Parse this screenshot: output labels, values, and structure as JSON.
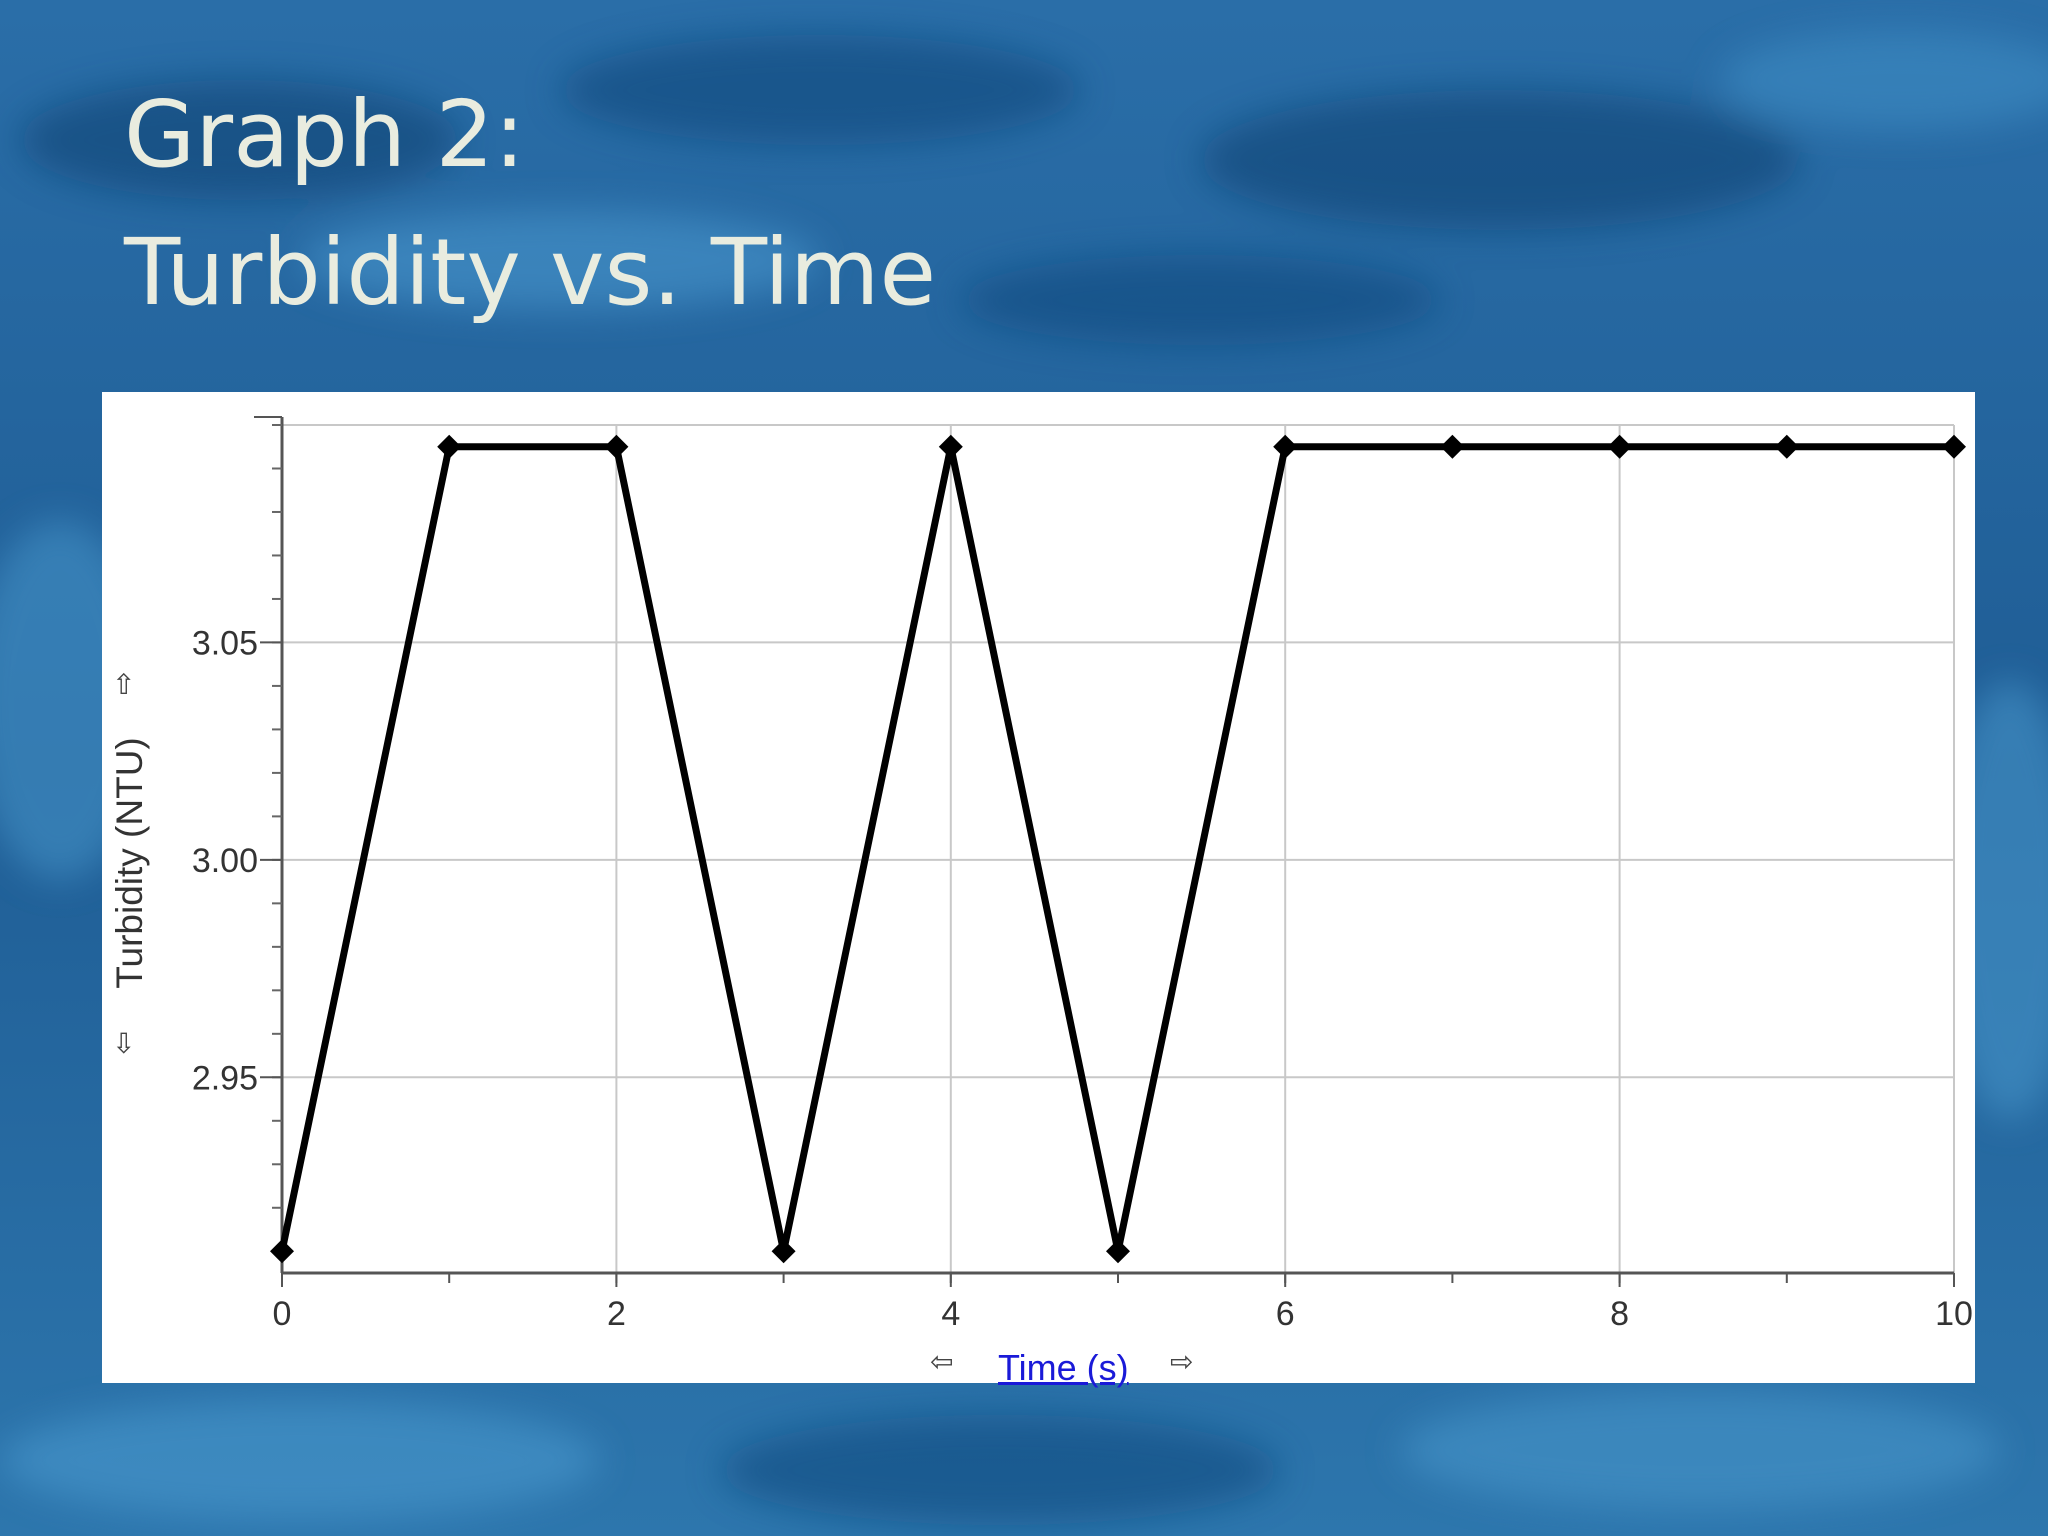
{
  "slide": {
    "title_line1": "Graph 2:",
    "title_line2": "Turbidity vs. Time"
  },
  "icons": {
    "y_up": "⇧",
    "y_down": "⇩",
    "x_left": "⇦",
    "x_right": "⇨"
  },
  "chart_data": {
    "type": "line",
    "xlabel": "Time (s)",
    "ylabel": "Turbidity (NTU)",
    "x": [
      0,
      1,
      2,
      3,
      4,
      5,
      6,
      7,
      8,
      9,
      10
    ],
    "series": [
      {
        "values": [
          2.91,
          3.095,
          3.095,
          2.91,
          3.095,
          2.91,
          3.095,
          3.095,
          3.095,
          3.095,
          3.095
        ]
      }
    ],
    "xlim": [
      0,
      10
    ],
    "ylim": [
      2.905,
      3.1
    ],
    "x_ticks": [
      0,
      2,
      4,
      6,
      8,
      10
    ],
    "x_tick_labels": [
      "0",
      "2",
      "4",
      "6",
      "8",
      "10"
    ],
    "y_ticks": [
      2.95,
      3.0,
      3.05
    ],
    "y_tick_labels": [
      "2.95",
      "3.00",
      "3.05"
    ],
    "grid": true,
    "marker": "diamond",
    "line_color": "#000000"
  }
}
